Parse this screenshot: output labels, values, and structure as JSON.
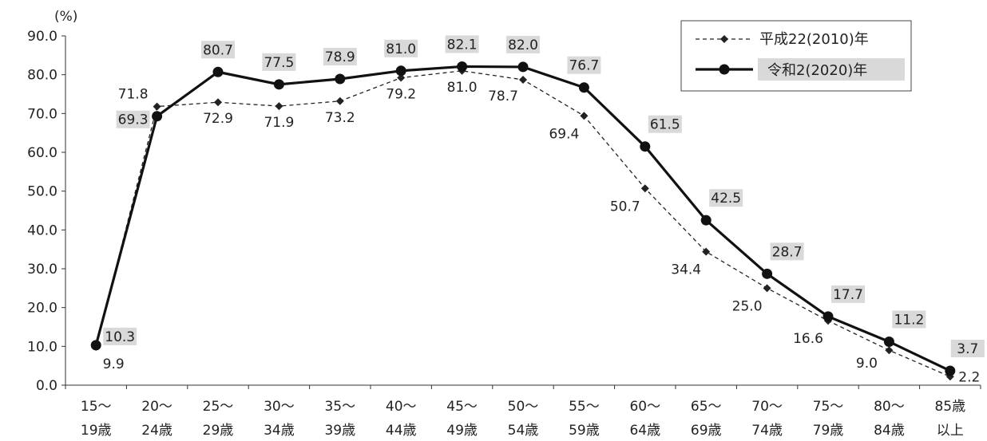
{
  "chart_data": {
    "type": "line",
    "y_unit": "(%)",
    "ylim": [
      0,
      90
    ],
    "yticks": [
      "0.0",
      "10.0",
      "20.0",
      "30.0",
      "40.0",
      "50.0",
      "60.0",
      "70.0",
      "80.0",
      "90.0"
    ],
    "categories": [
      [
        "15〜",
        "19歳"
      ],
      [
        "20〜",
        "24歳"
      ],
      [
        "25〜",
        "29歳"
      ],
      [
        "30〜",
        "34歳"
      ],
      [
        "35〜",
        "39歳"
      ],
      [
        "40〜",
        "44歳"
      ],
      [
        "45〜",
        "49歳"
      ],
      [
        "50〜",
        "54歳"
      ],
      [
        "55〜",
        "59歳"
      ],
      [
        "60〜",
        "64歳"
      ],
      [
        "65〜",
        "69歳"
      ],
      [
        "70〜",
        "74歳"
      ],
      [
        "75〜",
        "79歳"
      ],
      [
        "80〜",
        "84歳"
      ],
      [
        "85歳",
        "以上"
      ]
    ],
    "series": [
      {
        "name": "平成22(2010)年",
        "style": "dashed-diamond",
        "color": "#222222",
        "values": [
          9.9,
          71.8,
          72.9,
          71.9,
          73.2,
          79.2,
          81.0,
          78.7,
          69.4,
          50.7,
          34.4,
          25.0,
          16.6,
          9.0,
          2.2
        ],
        "labels": [
          "9.9",
          "71.8",
          "72.9",
          "71.9",
          "73.2",
          "79.2",
          "81.0",
          "78.7",
          "69.4",
          "50.7",
          "34.4",
          "25.0",
          "16.6",
          "9.0",
          "2.2"
        ]
      },
      {
        "name": "令和2(2020)年",
        "style": "solid-circle",
        "color": "#111111",
        "values": [
          10.3,
          69.3,
          80.7,
          77.5,
          78.9,
          81.0,
          82.1,
          82.0,
          76.7,
          61.5,
          42.5,
          28.7,
          17.7,
          11.2,
          3.7
        ],
        "labels": [
          "10.3",
          "69.3",
          "80.7",
          "77.5",
          "78.9",
          "81.0",
          "82.1",
          "82.0",
          "76.7",
          "61.5",
          "42.5",
          "28.7",
          "17.7",
          "11.2",
          "3.7"
        ]
      }
    ],
    "legend_position": "top-right",
    "grid": false
  }
}
